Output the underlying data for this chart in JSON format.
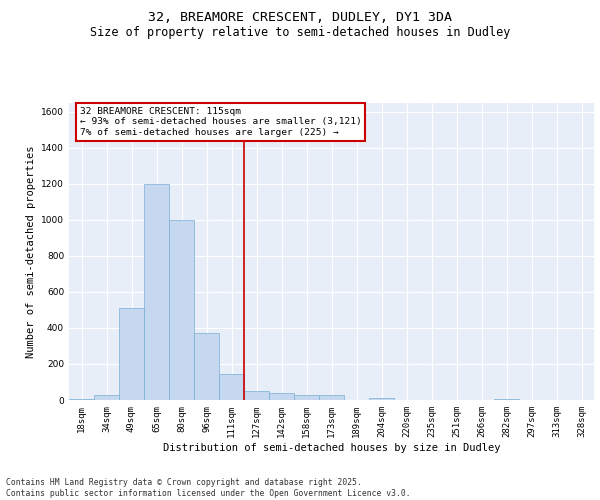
{
  "title_line1": "32, BREAMORE CRESCENT, DUDLEY, DY1 3DA",
  "title_line2": "Size of property relative to semi-detached houses in Dudley",
  "xlabel": "Distribution of semi-detached houses by size in Dudley",
  "ylabel": "Number of semi-detached properties",
  "categories": [
    "18sqm",
    "34sqm",
    "49sqm",
    "65sqm",
    "80sqm",
    "96sqm",
    "111sqm",
    "127sqm",
    "142sqm",
    "158sqm",
    "173sqm",
    "189sqm",
    "204sqm",
    "220sqm",
    "235sqm",
    "251sqm",
    "266sqm",
    "282sqm",
    "297sqm",
    "313sqm",
    "328sqm"
  ],
  "values": [
    8,
    30,
    510,
    1200,
    1000,
    370,
    145,
    50,
    40,
    30,
    25,
    0,
    12,
    0,
    0,
    0,
    0,
    8,
    0,
    0,
    0
  ],
  "bar_color": "#c5d8f0",
  "bar_edgecolor": "#7aadd4",
  "vline_color": "#cc0000",
  "annotation_text": "32 BREAMORE CRESCENT: 115sqm\n← 93% of semi-detached houses are smaller (3,121)\n7% of semi-detached houses are larger (225) →",
  "annotation_box_color": "#cc0000",
  "ylim": [
    0,
    1650
  ],
  "yticks": [
    0,
    200,
    400,
    600,
    800,
    1000,
    1200,
    1400,
    1600
  ],
  "background_color": "#e8eef8",
  "grid_color": "#ffffff",
  "footnote": "Contains HM Land Registry data © Crown copyright and database right 2025.\nContains public sector information licensed under the Open Government Licence v3.0.",
  "title_fontsize": 9.5,
  "subtitle_fontsize": 8.5,
  "label_fontsize": 7.5,
  "tick_fontsize": 6.5,
  "annot_fontsize": 6.8,
  "footnote_fontsize": 5.8
}
